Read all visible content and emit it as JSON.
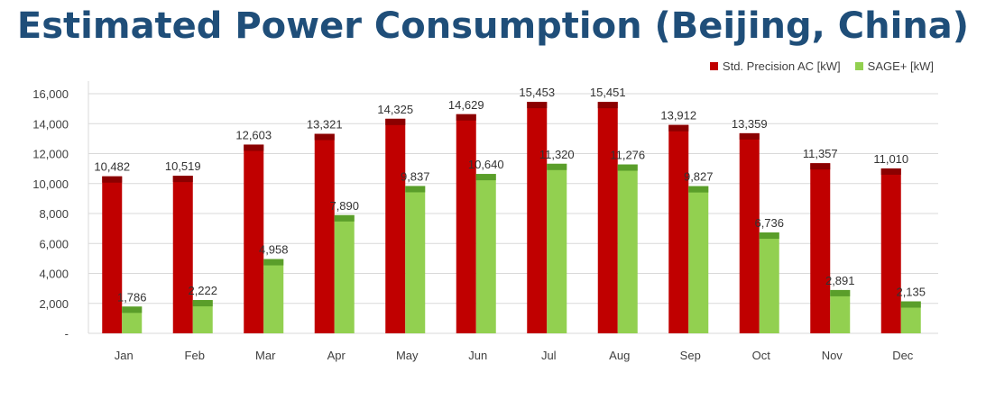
{
  "title": "Estimated Power Consumption (Beijing, China)",
  "colors": {
    "title": "#1f4e79",
    "series_a": "#c00000",
    "series_a_top": "#8b0000",
    "series_b": "#92d050",
    "series_b_top": "#5a9e2a",
    "grid": "#d9d9d9"
  },
  "chart_data": {
    "type": "bar",
    "title": "Estimated Power Consumption (Beijing, China)",
    "categories": [
      "Jan",
      "Feb",
      "Mar",
      "Apr",
      "May",
      "Jun",
      "Jul",
      "Aug",
      "Sep",
      "Oct",
      "Nov",
      "Dec"
    ],
    "series": [
      {
        "name": "Std. Precision AC [kW]",
        "values": [
          10482,
          10519,
          12603,
          13321,
          14325,
          14629,
          15453,
          15451,
          13912,
          13359,
          11357,
          11010
        ],
        "labels": [
          "10,482",
          "10,519",
          "12,603",
          "13,321",
          "14,325",
          "14,629",
          "15,453",
          "15,451",
          "13,912",
          "13,359",
          "11,357",
          "11,010"
        ]
      },
      {
        "name": "SAGE+ [kW]",
        "values": [
          1786,
          2222,
          4958,
          7890,
          9837,
          10640,
          11320,
          11276,
          9827,
          6736,
          2891,
          2135
        ],
        "labels": [
          "1,786",
          "2,222",
          "4,958",
          "7,890",
          "9,837",
          "10,640",
          "11,320",
          "11,276",
          "9,827",
          "6,736",
          "2,891",
          "2,135"
        ]
      }
    ],
    "y_ticks": [
      "-",
      "2,000",
      "4,000",
      "6,000",
      "8,000",
      "10,000",
      "12,000",
      "14,000",
      "16,000"
    ],
    "ylim": [
      0,
      16000
    ],
    "grid": true,
    "legend_position": "top-right"
  }
}
